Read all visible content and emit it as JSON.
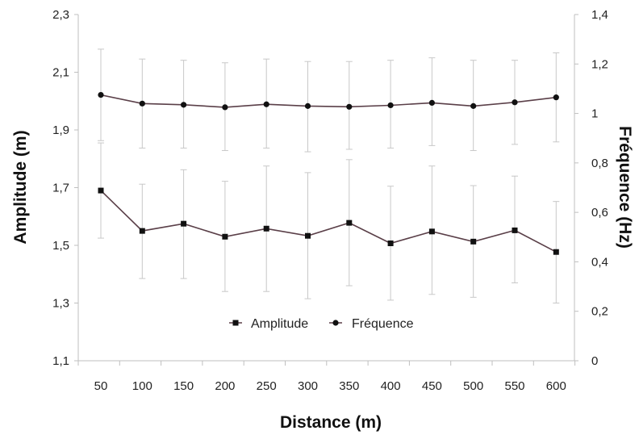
{
  "chart_data": {
    "type": "line",
    "x": [
      50,
      100,
      150,
      200,
      250,
      300,
      350,
      400,
      450,
      500,
      550,
      600
    ],
    "xlabel": "Distance (m)",
    "ylabel_left": "Amplitude (m)",
    "ylabel_right": "Fréquence (Hz)",
    "ylim_left": [
      1.1,
      2.3
    ],
    "ylim_right": [
      0,
      1.4
    ],
    "yticks_left": [
      "1,1",
      "1,3",
      "1,5",
      "1,7",
      "1,9",
      "2,1",
      "2,3"
    ],
    "yticks_right": [
      "0",
      "0,2",
      "0,4",
      "0,6",
      "0,8",
      "1",
      "1,2",
      "1,4"
    ],
    "line_color": "#5a3f48",
    "error_color": "#c8c8c8",
    "legend_position": "bottom-center",
    "series": [
      {
        "name": "Amplitude",
        "axis": "left",
        "marker": "square",
        "values": [
          1.69,
          1.55,
          1.575,
          1.53,
          1.558,
          1.533,
          1.578,
          1.507,
          1.548,
          1.513,
          1.552,
          1.477
        ],
        "error_low": [
          1.525,
          1.385,
          1.385,
          1.34,
          1.34,
          1.315,
          1.36,
          1.31,
          1.33,
          1.32,
          1.37,
          1.3
        ],
        "error_high": [
          1.855,
          1.712,
          1.762,
          1.722,
          1.775,
          1.752,
          1.797,
          1.705,
          1.775,
          1.707,
          1.74,
          1.652
        ]
      },
      {
        "name": "Fréquence",
        "axis": "right",
        "marker": "circle",
        "values": [
          1.075,
          1.04,
          1.035,
          1.025,
          1.037,
          1.03,
          1.027,
          1.033,
          1.043,
          1.03,
          1.045,
          1.065
        ],
        "error_low": [
          0.89,
          0.86,
          0.86,
          0.85,
          0.86,
          0.845,
          0.855,
          0.86,
          0.87,
          0.85,
          0.875,
          0.885
        ],
        "error_high": [
          1.26,
          1.22,
          1.215,
          1.205,
          1.22,
          1.21,
          1.21,
          1.215,
          1.225,
          1.215,
          1.215,
          1.245
        ]
      }
    ]
  }
}
